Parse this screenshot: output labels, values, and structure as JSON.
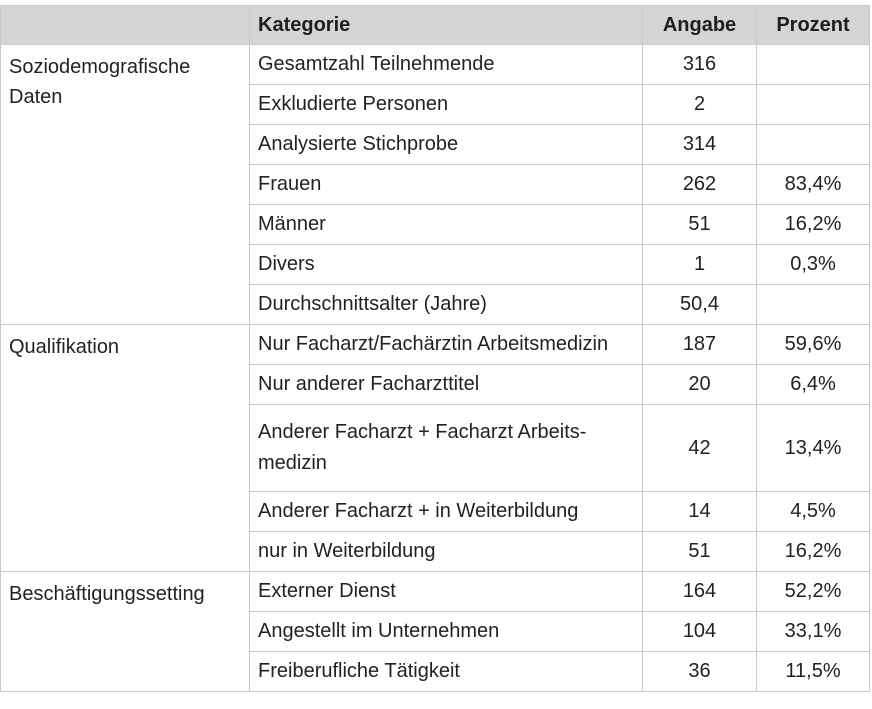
{
  "table": {
    "headers": [
      "",
      "Kategorie",
      "Angabe",
      "Prozent"
    ],
    "groups": [
      {
        "label": "Soziodemografische Daten",
        "rows": [
          {
            "kategorie": "Gesamtzahl Teilnehmende",
            "angabe": "316",
            "prozent": ""
          },
          {
            "kategorie": "Exkludierte Personen",
            "angabe": "2",
            "prozent": ""
          },
          {
            "kategorie": "Analysierte Stichprobe",
            "angabe": "314",
            "prozent": ""
          },
          {
            "kategorie": "Frauen",
            "angabe": "262",
            "prozent": "83,4%"
          },
          {
            "kategorie": "Männer",
            "angabe": "51",
            "prozent": "16,2%"
          },
          {
            "kategorie": "Divers",
            "angabe": "1",
            "prozent": "0,3%"
          },
          {
            "kategorie": "Durchschnittsalter (Jahre)",
            "angabe": "50,4",
            "prozent": ""
          }
        ]
      },
      {
        "label": "Qualifikation",
        "rows": [
          {
            "kategorie": "Nur Facharzt/Fachärztin Arbeitsmedizin",
            "angabe": "187",
            "prozent": "59,6%"
          },
          {
            "kategorie": "Nur anderer Facharzttitel",
            "angabe": "20",
            "prozent": "6,4%"
          },
          {
            "kategorie": "Anderer Facharzt + Facharzt Arbeits-medizin",
            "angabe": "42",
            "prozent": "13,4%"
          },
          {
            "kategorie": "Anderer Facharzt + in Weiterbildung",
            "angabe": "14",
            "prozent": "4,5%"
          },
          {
            "kategorie": "nur in Weiterbildung",
            "angabe": "51",
            "prozent": "16,2%"
          }
        ]
      },
      {
        "label": "Beschäftigungssetting",
        "rows": [
          {
            "kategorie": "Externer Dienst",
            "angabe": "164",
            "prozent": "52,2%"
          },
          {
            "kategorie": "Angestellt im Unternehmen",
            "angabe": "104",
            "prozent": "33,1%"
          },
          {
            "kategorie": "Freiberufliche Tätigkeit",
            "angabe": "36",
            "prozent": "11,5%"
          }
        ]
      }
    ]
  }
}
